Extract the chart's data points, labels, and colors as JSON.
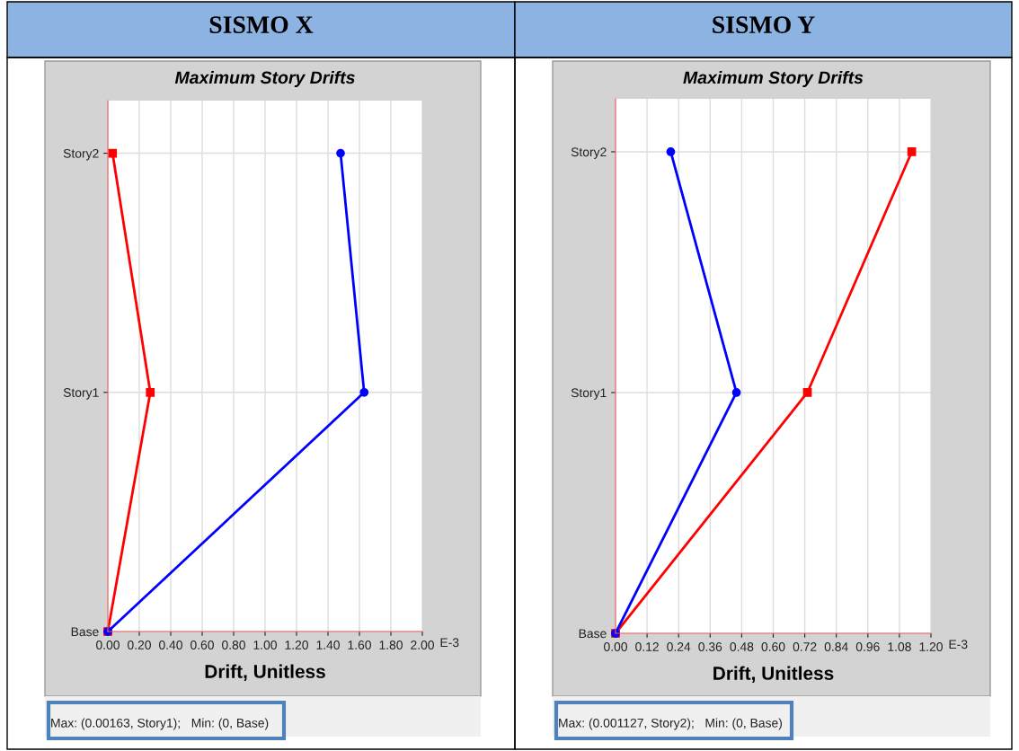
{
  "chart_data": [
    {
      "type": "line",
      "orientation": "horizontal",
      "title": "SISMO X",
      "subtitle": "Maximum Story Drifts",
      "xlabel": "Drift, Unitless",
      "categories": [
        "Story2",
        "Story1",
        "Base"
      ],
      "series": [
        {
          "color": "#ff0000",
          "marker": "square",
          "values": [
            0.03,
            0.27,
            0
          ]
        },
        {
          "color": "#0000ff",
          "marker": "circle",
          "values": [
            1.48,
            1.63,
            0
          ]
        }
      ],
      "xlim": [
        0,
        2
      ],
      "xticks": [
        {
          "value": 0,
          "label": "0.00"
        },
        {
          "value": 0.2,
          "label": "0.20"
        },
        {
          "value": 0.4,
          "label": "0.40"
        },
        {
          "value": 0.6,
          "label": "0.60"
        },
        {
          "value": 0.8,
          "label": "0.80"
        },
        {
          "value": 1.0,
          "label": "1.00"
        },
        {
          "value": 1.2,
          "label": "1.20"
        },
        {
          "value": 1.4,
          "label": "1.40"
        },
        {
          "value": 1.6,
          "label": "1.60"
        },
        {
          "value": 1.8,
          "label": "1.80"
        },
        {
          "value": 2.0,
          "label": "2.00"
        }
      ],
      "annotations": [
        "E-3",
        "Max: (0.00163, Story1);   Min: (0, Base)"
      ],
      "grid": true,
      "legend": false,
      "line_style": "solid"
    },
    {
      "type": "line",
      "orientation": "horizontal",
      "title": "SISMO Y",
      "subtitle": "Maximum Story Drifts",
      "xlabel": "Drift, Unitless",
      "categories": [
        "Story2",
        "Story1",
        "Base"
      ],
      "series": [
        {
          "color": "#ff0000",
          "marker": "square",
          "values": [
            1.127,
            0.73,
            0
          ]
        },
        {
          "color": "#0000ff",
          "marker": "circle",
          "values": [
            0.21,
            0.46,
            0
          ]
        }
      ],
      "xlim": [
        0,
        1.2
      ],
      "xticks": [
        {
          "value": 0,
          "label": "0.00"
        },
        {
          "value": 0.12,
          "label": "0.12"
        },
        {
          "value": 0.24,
          "label": "0.24"
        },
        {
          "value": 0.36,
          "label": "0.36"
        },
        {
          "value": 0.48,
          "label": "0.48"
        },
        {
          "value": 0.6,
          "label": "0.60"
        },
        {
          "value": 0.72,
          "label": "0.72"
        },
        {
          "value": 0.84,
          "label": "0.84"
        },
        {
          "value": 0.96,
          "label": "0.96"
        },
        {
          "value": 1.08,
          "label": "1.08"
        },
        {
          "value": 1.2,
          "label": "1.20"
        }
      ],
      "annotations": [
        "E-3",
        "Max: (0.001127, Story2);   Min: (0, Base)"
      ],
      "grid": true,
      "legend": false,
      "line_style": "solid"
    }
  ]
}
